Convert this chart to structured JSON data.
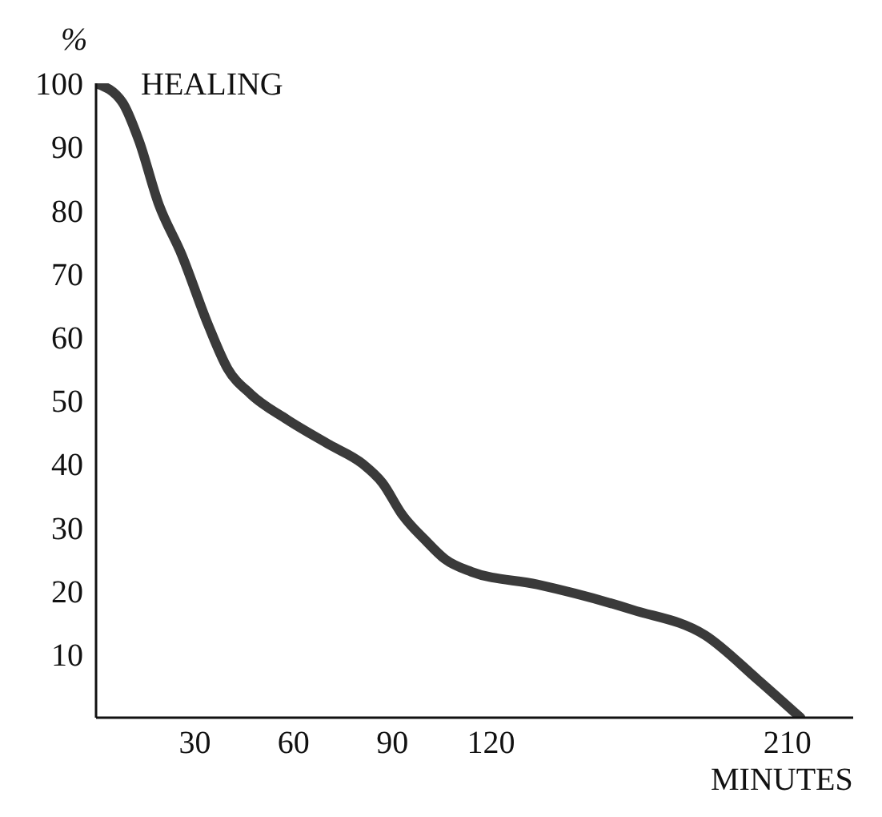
{
  "chart_data": {
    "type": "line",
    "title": "HEALING",
    "xlabel": "MINUTES",
    "ylabel": "%",
    "x": [
      0,
      8,
      13,
      19,
      26,
      34,
      40,
      47,
      58,
      71,
      81,
      87,
      93,
      100,
      106,
      114,
      134,
      163,
      185,
      201,
      214
    ],
    "series": [
      {
        "color": "#3a3a3a",
        "values": [
          100,
          97,
          91,
          81,
          73,
          62,
          55,
          51,
          47,
          43,
          40,
          37,
          32,
          28,
          25,
          23,
          21,
          17,
          13,
          6,
          0
        ]
      }
    ],
    "xlim": [
      0,
      230
    ],
    "xticks": [
      30,
      60,
      90,
      120,
      210
    ],
    "ylim": [
      0,
      100
    ],
    "yticks": [
      10,
      20,
      30,
      40,
      50,
      60,
      70,
      80,
      90,
      100
    ],
    "grid": false,
    "legend": false,
    "marker": "none",
    "line_style": "solid"
  }
}
